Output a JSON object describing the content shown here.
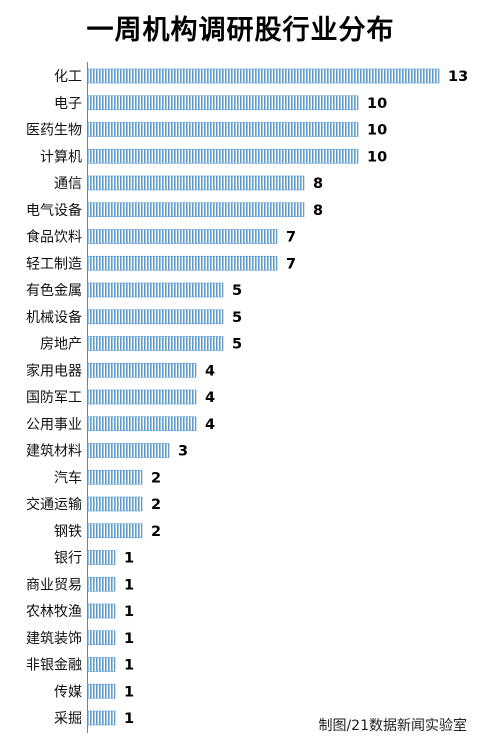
{
  "chart_data": {
    "type": "bar",
    "orientation": "horizontal",
    "title": "一周机构调研股行业分布",
    "categories": [
      "化工",
      "电子",
      "医药生物",
      "计算机",
      "通信",
      "电气设备",
      "食品饮料",
      "轻工制造",
      "有色金属",
      "机械设备",
      "房地产",
      "家用电器",
      "国防军工",
      "公用事业",
      "建筑材料",
      "汽车",
      "交通运输",
      "钢铁",
      "银行",
      "商业贸易",
      "农林牧渔",
      "建筑装饰",
      "非银金融",
      "传媒",
      "采掘"
    ],
    "values": [
      13,
      10,
      10,
      10,
      8,
      8,
      7,
      7,
      5,
      5,
      5,
      4,
      4,
      4,
      3,
      2,
      2,
      2,
      1,
      1,
      1,
      1,
      1,
      1,
      1
    ],
    "xlim": [
      0,
      13
    ],
    "bar_color": "#5b9bd5",
    "grid": false,
    "legend": "none"
  },
  "credit": "制图/21数据新闻实验室"
}
